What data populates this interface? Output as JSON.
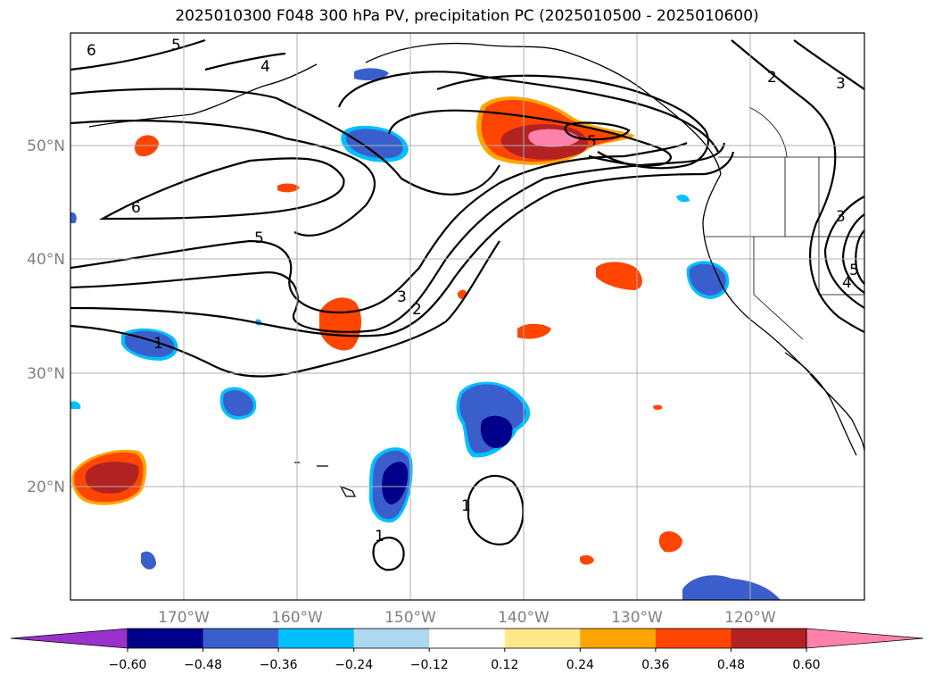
{
  "title": "2025010300 F048 300 hPa PV, precipitation PC (2025010500 - 2025010600)",
  "lat_labels": [
    "50°N",
    "40°N",
    "30°N",
    "20°N"
  ],
  "lon_labels": [
    "170°W",
    "160°W",
    "150°W",
    "140°W",
    "130°W",
    "120°W"
  ],
  "contour_labels": [
    "6",
    "5",
    "4",
    "6",
    "5",
    "3",
    "2",
    "1",
    "3",
    "2",
    "3",
    "4",
    "5",
    "1",
    "1",
    "5"
  ],
  "colorbar": {
    "ticks": [
      "−0.60",
      "−0.48",
      "−0.36",
      "−0.24",
      "−0.12",
      "0.12",
      "0.24",
      "0.36",
      "0.48",
      "0.60"
    ],
    "colors": [
      "#9932cc",
      "#00008b",
      "#3a5fcd",
      "#00bfff",
      "#add8f0",
      "#ffffff",
      "#ffe88a",
      "#ffa500",
      "#ff4500",
      "#b22222",
      "#ff82ab"
    ]
  },
  "colors": {
    "strong_neg": "#00008b",
    "mid_neg": "#3a5fcd",
    "weak_neg": "#00bfff",
    "weak_pos": "#ffa500",
    "mid_pos": "#ff4500",
    "strong_pos": "#b22222",
    "max_pos": "#ff82ab",
    "grid": "#b0b0b0"
  }
}
